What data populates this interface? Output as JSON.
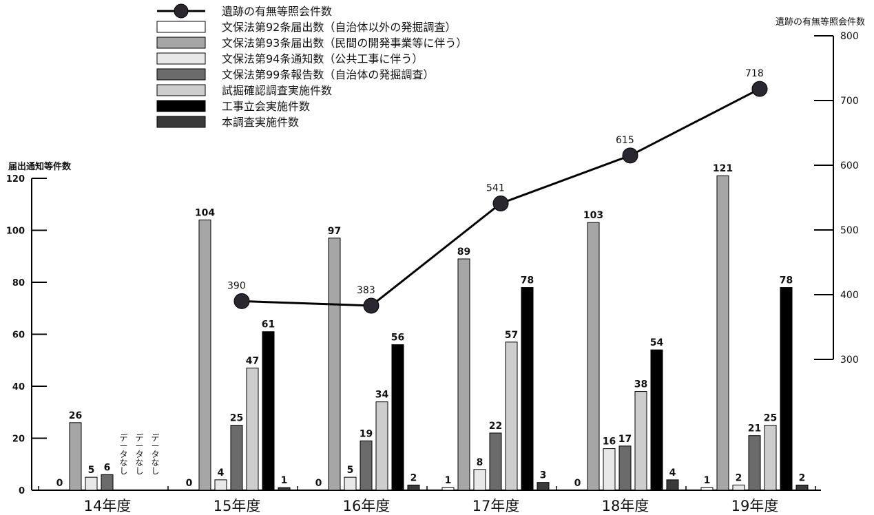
{
  "chart_data": {
    "type": "bar",
    "categories": [
      "14年度",
      "15年度",
      "16年度",
      "17年度",
      "18年度",
      "19年度"
    ],
    "left_axis": {
      "title": "届出通知等件数",
      "min": 0,
      "max": 120,
      "ticks": [
        0,
        20,
        40,
        60,
        80,
        100,
        120
      ]
    },
    "right_axis": {
      "title": "遺跡の有無等照会件数",
      "min": 300,
      "max": 800,
      "ticks": [
        300,
        400,
        500,
        600,
        700,
        800
      ]
    },
    "series": [
      {
        "name": "文保法第92条届出数（自治体以外の発掘調査）",
        "color": "#ffffff",
        "values": [
          0,
          0,
          0,
          1,
          0,
          1
        ]
      },
      {
        "name": "文保法第93条届出数（民間の開発事業等に伴う）",
        "color": "#a6a6a6",
        "values": [
          26,
          104,
          97,
          89,
          103,
          121
        ]
      },
      {
        "name": "文保法第94条通知数（公共工事に伴う）",
        "color": "#e8e8e8",
        "values": [
          5,
          4,
          5,
          8,
          16,
          2
        ]
      },
      {
        "name": "文保法第99条報告数（自治体の発掘調査）",
        "color": "#6b6b6b",
        "values": [
          6,
          25,
          19,
          22,
          17,
          21
        ]
      },
      {
        "name": "試掘確認調査実施件数",
        "color": "#cdcdcd",
        "values": [
          null,
          47,
          34,
          57,
          38,
          25
        ]
      },
      {
        "name": "工事立会実施件数",
        "color": "#000000",
        "values": [
          null,
          61,
          56,
          78,
          54,
          78
        ]
      },
      {
        "name": "本調査実施件数",
        "color": "#3a3a3a",
        "values": [
          null,
          1,
          2,
          3,
          4,
          2
        ]
      }
    ],
    "line_series": {
      "name": "遺跡の有無等照会件数",
      "axis": "right",
      "values": [
        null,
        390,
        383,
        541,
        615,
        718
      ]
    },
    "no_data_label": "データなし"
  }
}
